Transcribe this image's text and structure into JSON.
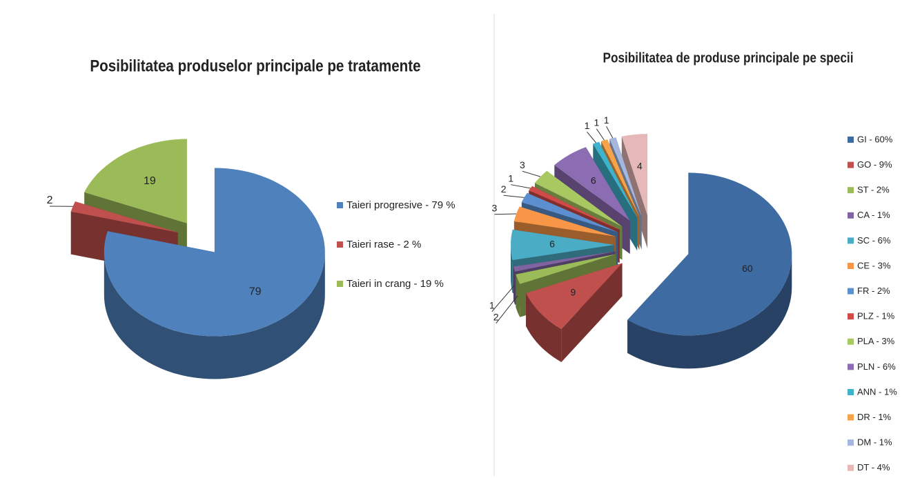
{
  "chart_data": [
    {
      "type": "pie3d",
      "title": "Posibilitatea produselor principale pe tratamente",
      "categories": [
        "Taieri progresive - 79 %",
        "Taieri rase - 2 %",
        "Taieri in crang - 19 %"
      ],
      "values": [
        79,
        2,
        19
      ],
      "colors": [
        "#4f81bd",
        "#c0504d",
        "#9bbb59"
      ]
    },
    {
      "type": "pie3d",
      "title": "Posibilitatea de produse principale pe specii",
      "categories": [
        "GI - 60%",
        "GO - 9%",
        "ST - 2%",
        "CA - 1%",
        "SC - 6%",
        "CE - 3%",
        "FR - 2%",
        "PLZ - 1%",
        "PLA - 3%",
        "PLN - 6%",
        "ANN - 1%",
        "DR - 1%",
        "DM - 1%",
        "DT - 4%"
      ],
      "values": [
        60,
        9,
        2,
        1,
        6,
        3,
        2,
        1,
        3,
        6,
        1,
        1,
        1,
        4
      ],
      "colors": [
        "#3f6ba3",
        "#c0504d",
        "#9bbb59",
        "#8064a2",
        "#4bacc6",
        "#f79646",
        "#5b8fd0",
        "#d04a47",
        "#a8c862",
        "#8c6cb2",
        "#3fb2cc",
        "#f7a34a",
        "#a5b6df",
        "#e6b9b8"
      ]
    }
  ]
}
